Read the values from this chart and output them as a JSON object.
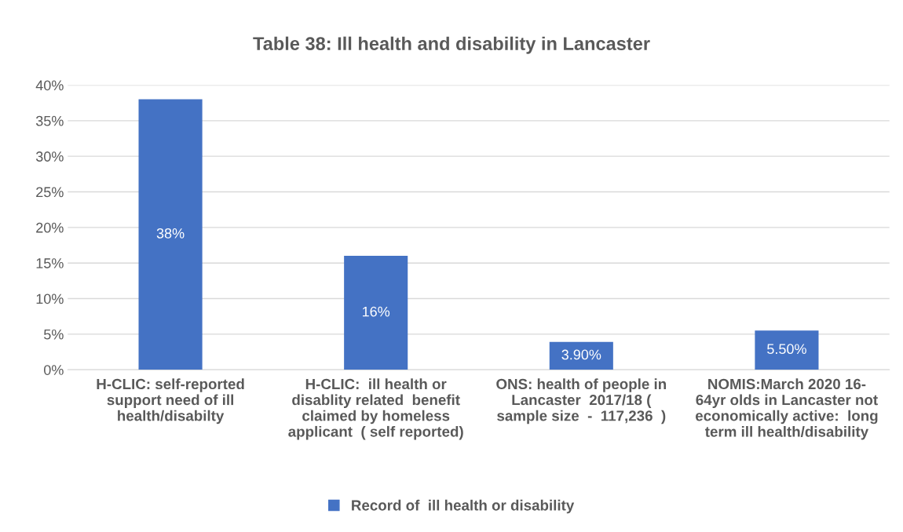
{
  "chart_data": {
    "type": "bar",
    "title": "Table 38: Ill health and disability in Lancaster",
    "categories": [
      "H-CLIC: self-reported\nsupport need of ill\nhealth/disabilty",
      "H-CLIC:  ill health or\ndisablity related  benefit\nclaimed by homeless\napplicant  ( self reported)",
      "ONS: health of people in\nLancaster  2017/18 (\nsample size  -  117,236  )",
      "NOMIS:March 2020 16-\n64yr olds in Lancaster not\neconomically active:  long\nterm ill health/disability"
    ],
    "series": [
      {
        "name": "Record of  ill health or disability",
        "color": "#4472c4",
        "values": [
          38,
          16,
          3.9,
          5.5
        ],
        "value_labels": [
          "38%",
          "16%",
          "3.90%",
          "5.50%"
        ]
      }
    ],
    "ylim": [
      0,
      40
    ],
    "yticks": [
      {
        "value": 0,
        "label": "0%"
      },
      {
        "value": 5,
        "label": "5%"
      },
      {
        "value": 10,
        "label": "10%"
      },
      {
        "value": 15,
        "label": "15%"
      },
      {
        "value": 20,
        "label": "20%"
      },
      {
        "value": 25,
        "label": "25%"
      },
      {
        "value": 30,
        "label": "30%"
      },
      {
        "value": 35,
        "label": "35%"
      },
      {
        "value": 40,
        "label": "40%"
      }
    ],
    "grid": "y",
    "legend": "bottom"
  }
}
